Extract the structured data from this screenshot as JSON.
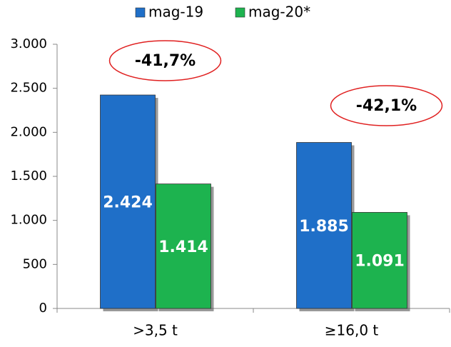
{
  "chart_data": {
    "type": "bar",
    "categories": [
      ">3,5 t",
      "≥16,0 t"
    ],
    "series": [
      {
        "name": "mag-19",
        "color": "#1f6fc8",
        "values": [
          2424,
          1885
        ],
        "value_labels": [
          "2.424",
          "1.885"
        ]
      },
      {
        "name": "mag-20*",
        "color": "#1db34f",
        "values": [
          1414,
          1091
        ],
        "value_labels": [
          "1.414",
          "1.091"
        ]
      }
    ],
    "annotations": [
      "-41,7%",
      "-42,1%"
    ],
    "ylim": [
      0,
      3000
    ],
    "yticks": [
      0,
      500,
      {
        "value": 1000,
        "label": "1.000"
      },
      {
        "value": 1500,
        "label": "1.500"
      },
      {
        "value": 2000,
        "label": "2.000"
      },
      {
        "value": 2500,
        "label": "2.500"
      },
      {
        "value": 3000,
        "label": "3.000"
      }
    ],
    "annotation_color": "#e02020"
  }
}
